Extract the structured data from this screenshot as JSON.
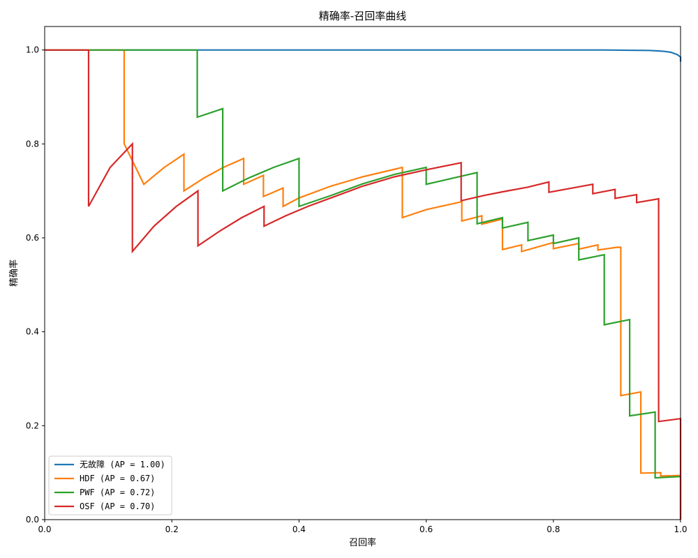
{
  "chart_data": {
    "type": "line",
    "title": "精确率-召回率曲线",
    "xlabel": "召回率",
    "ylabel": "精确率",
    "xlim": [
      0,
      1
    ],
    "ylim": [
      0,
      1.05
    ],
    "xticks": [
      "0.0",
      "0.2",
      "0.4",
      "0.6",
      "0.8",
      "1.0"
    ],
    "xtick_values": [
      0,
      0.2,
      0.4,
      0.6,
      0.8,
      1.0
    ],
    "yticks": [
      "0.0",
      "0.2",
      "0.4",
      "0.6",
      "0.8",
      "1.0"
    ],
    "ytick_values": [
      0,
      0.2,
      0.4,
      0.6,
      0.8,
      1.0
    ],
    "grid": false,
    "legend_position": "lower-left",
    "series": [
      {
        "name": "无故障 (AP = 1.00)",
        "color": "#1f77b4",
        "x": [
          0,
          0.88,
          0.95,
          0.965,
          0.975,
          0.985,
          0.995,
          1.0,
          1.0
        ],
        "y": [
          1.0,
          1.0,
          0.999,
          0.998,
          0.997,
          0.995,
          0.99,
          0.985,
          0.975
        ]
      },
      {
        "name": "HDF (AP = 0.67)",
        "color": "#ff7f0e",
        "x": [
          0,
          0.125,
          0.125,
          0.156,
          0.188,
          0.219,
          0.219,
          0.25,
          0.281,
          0.313,
          0.313,
          0.344,
          0.344,
          0.375,
          0.375,
          0.4,
          0.45,
          0.5,
          0.5625,
          0.5625,
          0.6,
          0.656,
          0.656,
          0.6875,
          0.6875,
          0.72,
          0.72,
          0.75,
          0.75,
          0.8,
          0.8,
          0.84,
          0.84,
          0.87,
          0.87,
          0.9,
          0.906,
          0.906,
          0.9375,
          0.9375,
          0.9688,
          0.9688,
          1.0
        ],
        "y": [
          1.0,
          1.0,
          0.8,
          0.714,
          0.75,
          0.778,
          0.7,
          0.727,
          0.75,
          0.769,
          0.714,
          0.733,
          0.688,
          0.706,
          0.667,
          0.685,
          0.71,
          0.73,
          0.75,
          0.643,
          0.66,
          0.677,
          0.636,
          0.647,
          0.629,
          0.64,
          0.575,
          0.585,
          0.571,
          0.59,
          0.577,
          0.588,
          0.576,
          0.585,
          0.574,
          0.58,
          0.58,
          0.264,
          0.272,
          0.099,
          0.1,
          0.093,
          0.094
        ]
      },
      {
        "name": "PWF (AP = 0.72)",
        "color": "#2ca02c",
        "x": [
          0,
          0.24,
          0.24,
          0.28,
          0.28,
          0.32,
          0.36,
          0.4,
          0.4,
          0.45,
          0.5,
          0.55,
          0.6,
          0.6,
          0.68,
          0.68,
          0.72,
          0.72,
          0.76,
          0.76,
          0.8,
          0.8,
          0.84,
          0.84,
          0.88,
          0.88,
          0.92,
          0.92,
          0.96,
          0.96,
          1.0,
          1.0
        ],
        "y": [
          1.0,
          1.0,
          0.857,
          0.875,
          0.7,
          0.727,
          0.75,
          0.769,
          0.667,
          0.69,
          0.715,
          0.735,
          0.75,
          0.714,
          0.739,
          0.63,
          0.643,
          0.621,
          0.633,
          0.594,
          0.606,
          0.588,
          0.6,
          0.553,
          0.564,
          0.415,
          0.426,
          0.221,
          0.229,
          0.089,
          0.092,
          0.0
        ]
      },
      {
        "name": "OSF (AP = 0.70)",
        "color": "#d62728",
        "x": [
          0,
          0.069,
          0.069,
          0.103,
          0.138,
          0.138,
          0.172,
          0.207,
          0.241,
          0.241,
          0.276,
          0.31,
          0.345,
          0.345,
          0.379,
          0.414,
          0.45,
          0.5,
          0.55,
          0.6,
          0.655,
          0.655,
          0.69,
          0.72,
          0.76,
          0.793,
          0.793,
          0.862,
          0.862,
          0.897,
          0.897,
          0.931,
          0.931,
          0.9655,
          0.9655,
          1.0,
          1.0
        ],
        "y": [
          1.0,
          1.0,
          0.667,
          0.75,
          0.8,
          0.571,
          0.625,
          0.667,
          0.7,
          0.583,
          0.615,
          0.643,
          0.667,
          0.625,
          0.647,
          0.667,
          0.685,
          0.71,
          0.73,
          0.745,
          0.76,
          0.679,
          0.69,
          0.698,
          0.708,
          0.719,
          0.697,
          0.714,
          0.694,
          0.703,
          0.684,
          0.692,
          0.675,
          0.683,
          0.209,
          0.215,
          0.0
        ]
      }
    ]
  }
}
